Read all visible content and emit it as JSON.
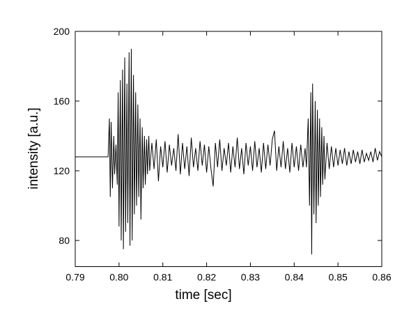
{
  "chart_data": {
    "type": "line",
    "xlabel": "time [sec]",
    "ylabel": "intensity [a.u.]",
    "color": "#000000",
    "xlim": [
      0.79,
      0.86
    ],
    "ylim": [
      65,
      200
    ],
    "xticks": [
      0.79,
      {
        "value": 0.8,
        "label": "0.80"
      },
      0.81,
      0.82,
      0.83,
      0.84,
      0.85,
      0.86
    ],
    "yticks": [
      80,
      120,
      160,
      200
    ],
    "x": [
      0.79,
      0.7975,
      0.7978,
      0.798,
      0.7982,
      0.7985,
      0.7988,
      0.799,
      0.7993,
      0.7996,
      0.7998,
      0.8,
      0.8003,
      0.8005,
      0.8008,
      0.801,
      0.8013,
      0.8015,
      0.8018,
      0.802,
      0.8023,
      0.8025,
      0.8028,
      0.803,
      0.8033,
      0.8035,
      0.8038,
      0.804,
      0.8043,
      0.8045,
      0.8048,
      0.805,
      0.8053,
      0.8055,
      0.8058,
      0.806,
      0.8063,
      0.8065,
      0.8068,
      0.807,
      0.8075,
      0.808,
      0.8085,
      0.809,
      0.8095,
      0.81,
      0.8105,
      0.811,
      0.8115,
      0.812,
      0.8125,
      0.813,
      0.8135,
      0.814,
      0.8145,
      0.815,
      0.8155,
      0.816,
      0.8165,
      0.817,
      0.8175,
      0.818,
      0.8185,
      0.819,
      0.8195,
      0.82,
      0.8205,
      0.821,
      0.8215,
      0.822,
      0.8225,
      0.823,
      0.8235,
      0.824,
      0.8245,
      0.825,
      0.8255,
      0.826,
      0.8265,
      0.827,
      0.8275,
      0.828,
      0.8285,
      0.829,
      0.8295,
      0.83,
      0.8305,
      0.831,
      0.8315,
      0.832,
      0.8325,
      0.833,
      0.8335,
      0.834,
      0.8345,
      0.835,
      0.8355,
      0.836,
      0.8365,
      0.837,
      0.8375,
      0.838,
      0.8385,
      0.839,
      0.8395,
      0.84,
      0.8405,
      0.841,
      0.8415,
      0.842,
      0.8425,
      0.8428,
      0.8432,
      0.8435,
      0.8438,
      0.844,
      0.8442,
      0.8445,
      0.8448,
      0.845,
      0.8453,
      0.8455,
      0.8458,
      0.846,
      0.8463,
      0.8465,
      0.8468,
      0.847,
      0.8475,
      0.848,
      0.8485,
      0.849,
      0.8495,
      0.85,
      0.8505,
      0.851,
      0.8515,
      0.852,
      0.8525,
      0.853,
      0.8535,
      0.854,
      0.8545,
      0.855,
      0.8555,
      0.856,
      0.8565,
      0.857,
      0.8575,
      0.858,
      0.8585,
      0.859,
      0.8595,
      0.86
    ],
    "values": [
      128,
      128,
      150,
      105,
      148,
      110,
      140,
      118,
      135,
      112,
      165,
      88,
      172,
      80,
      178,
      75,
      185,
      85,
      170,
      90,
      188,
      77,
      190,
      80,
      175,
      95,
      165,
      100,
      158,
      105,
      150,
      92,
      145,
      110,
      140,
      112,
      138,
      118,
      140,
      120,
      136,
      121,
      138,
      114,
      134,
      122,
      137,
      119,
      135,
      123,
      133,
      120,
      141,
      118,
      136,
      121,
      134,
      117,
      139,
      122,
      133,
      120,
      137,
      123,
      135,
      119,
      134,
      121,
      111,
      136,
      122,
      138,
      120,
      133,
      123,
      136,
      119,
      134,
      122,
      139,
      121,
      133,
      118,
      136,
      123,
      134,
      120,
      137,
      122,
      133,
      119,
      136,
      121,
      135,
      123,
      138,
      143,
      120,
      134,
      122,
      137,
      121,
      133,
      119,
      136,
      122,
      134,
      120,
      135,
      122,
      133,
      122,
      150,
      100,
      165,
      72,
      170,
      95,
      160,
      90,
      155,
      100,
      150,
      105,
      145,
      112,
      140,
      115,
      136,
      121,
      134,
      122,
      133,
      123,
      132,
      124,
      133,
      123,
      131,
      124,
      132,
      125,
      131,
      124,
      132,
      125,
      130,
      126,
      131,
      125,
      133,
      126,
      131,
      128
    ]
  }
}
